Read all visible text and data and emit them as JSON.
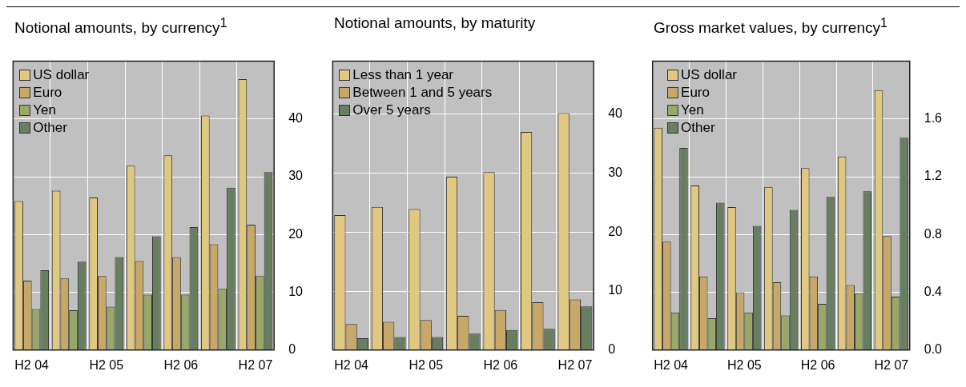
{
  "chart_data": [
    {
      "type": "bar",
      "title": "Notional amounts, by currency$^{1}$",
      "categories": [
        "H2 04",
        null,
        "H2 05",
        null,
        "H2 06",
        null,
        "H2 07"
      ],
      "ylim": [
        0,
        50
      ],
      "yticks": [
        0,
        10,
        20,
        30,
        40
      ],
      "grid": true,
      "legend": "top left",
      "series": [
        {
          "name": "US dollar",
          "color": "#e0c880",
          "values": [
            25.8,
            27.6,
            26.4,
            31.9,
            33.7,
            40.6,
            46.9
          ]
        },
        {
          "name": "Euro",
          "color": "#c8a868",
          "values": [
            12.0,
            12.4,
            12.8,
            15.4,
            16.1,
            18.3,
            21.7
          ]
        },
        {
          "name": "Yen",
          "color": "#98a868",
          "values": [
            7.1,
            6.9,
            7.5,
            9.6,
            9.6,
            10.6,
            12.8
          ]
        },
        {
          "name": "Other",
          "color": "#687e60",
          "values": [
            13.8,
            15.3,
            16.1,
            19.7,
            21.3,
            28.1,
            30.8
          ]
        }
      ]
    },
    {
      "type": "bar",
      "title": "Notional amounts, by maturity",
      "categories": [
        "H2 04",
        null,
        "H2 05",
        null,
        "H2 06",
        null,
        "H2 07"
      ],
      "ylim": [
        0,
        49
      ],
      "yticks": [
        0,
        10,
        20,
        30,
        40
      ],
      "grid": true,
      "legend": "top left",
      "series": [
        {
          "name": "Less than 1 year",
          "color": "#e0c880",
          "values": [
            22.9,
            24.3,
            23.9,
            29.4,
            30.2,
            37.0,
            40.2
          ]
        },
        {
          "name": "Between 1 and 5 years",
          "color": "#c8a868",
          "values": [
            4.4,
            4.8,
            5.1,
            5.8,
            6.8,
            8.1,
            8.6
          ]
        },
        {
          "name": "Over 5 years",
          "color": "#687e60",
          "values": [
            2.0,
            2.2,
            2.2,
            2.8,
            3.4,
            3.6,
            7.4
          ]
        }
      ]
    },
    {
      "type": "bar",
      "title": "Gross market values, by currency$^{1}$",
      "categories": [
        "H2 04",
        null,
        "H2 05",
        null,
        "H2 06",
        null,
        "H2 07"
      ],
      "ylim": [
        0,
        2
      ],
      "yticks": [
        {
          "value": 0,
          "label": "0.0"
        },
        {
          "value": 0.4,
          "label": "0.4"
        },
        {
          "value": 0.8,
          "label": "0.8"
        },
        {
          "value": 1.2,
          "label": "1.2"
        },
        {
          "value": 1.6,
          "label": "1.6"
        }
      ],
      "grid": true,
      "legend": "top left",
      "series": [
        {
          "name": "US dollar",
          "color": "#e0c880",
          "values": [
            1.54,
            1.14,
            0.99,
            1.13,
            1.26,
            1.34,
            1.8
          ]
        },
        {
          "name": "Euro",
          "color": "#c8a868",
          "values": [
            0.75,
            0.51,
            0.4,
            0.47,
            0.51,
            0.45,
            0.79
          ]
        },
        {
          "name": "Yen",
          "color": "#98a868",
          "values": [
            0.26,
            0.22,
            0.26,
            0.24,
            0.32,
            0.39,
            0.37
          ]
        },
        {
          "name": "Other",
          "color": "#687e60",
          "values": [
            1.4,
            1.02,
            0.86,
            0.97,
            1.06,
            1.1,
            1.47
          ]
        }
      ]
    }
  ]
}
